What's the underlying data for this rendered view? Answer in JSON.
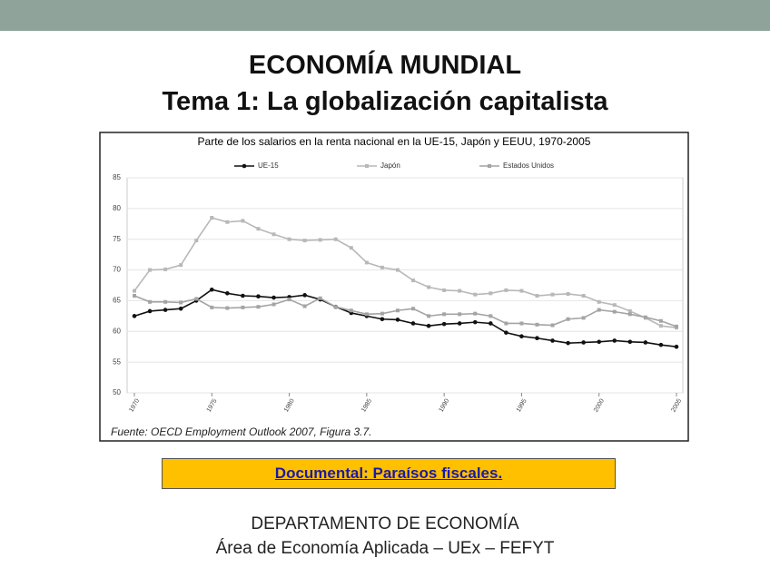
{
  "slide": {
    "title": "ECONOMÍA MUNDIAL",
    "subtitle": "Tema 1: La globalización capitalista",
    "link": "Documental: Paraísos fiscales.",
    "footer": [
      "DEPARTAMENTO DE ECONOMÍA",
      "Área de Economía Aplicada – UEx – FEFYT"
    ]
  },
  "chart_data": {
    "type": "line",
    "title": "Parte de los salarios en la renta nacional en la UE-15, Japón y EEUU, 1970-2005",
    "source": "Fuente: OECD Employment Outlook 2007, Figura 3.7.",
    "x": [
      1970,
      1971,
      1972,
      1973,
      1974,
      1975,
      1976,
      1977,
      1978,
      1979,
      1980,
      1981,
      1982,
      1983,
      1984,
      1985,
      1986,
      1987,
      1988,
      1989,
      1990,
      1991,
      1992,
      1993,
      1994,
      1995,
      1996,
      1997,
      1998,
      1999,
      2000,
      2001,
      2002,
      2003,
      2004,
      2005
    ],
    "xlim": [
      1970,
      2005
    ],
    "xticks": [
      1970,
      1975,
      1980,
      1985,
      1990,
      1995,
      2000,
      2005
    ],
    "ylim": [
      50,
      85
    ],
    "yticks": [
      50,
      55,
      60,
      65,
      70,
      75,
      80,
      85
    ],
    "series": [
      {
        "name": "UE-15",
        "color": "#111111",
        "marker": "circle",
        "values": [
          62.5,
          63.3,
          63.5,
          63.7,
          65,
          66.8,
          66.2,
          65.8,
          65.7,
          65.5,
          65.6,
          65.9,
          65.2,
          64,
          63,
          62.5,
          62,
          61.9,
          61.3,
          60.9,
          61.2,
          61.3,
          61.5,
          61.3,
          59.8,
          59.2,
          58.9,
          58.5,
          58.1,
          58.2,
          58.3,
          58.5,
          58.3,
          58.2,
          57.8,
          57.5
        ]
      },
      {
        "name": "Japón",
        "color": "#b8b8b8",
        "marker": "square",
        "values": [
          66.6,
          70,
          70.1,
          70.8,
          74.8,
          78.5,
          77.8,
          78,
          76.7,
          75.8,
          75,
          74.8,
          74.9,
          75,
          73.6,
          71.2,
          70.4,
          70,
          68.3,
          67.2,
          66.7,
          66.6,
          66,
          66.2,
          66.7,
          66.6,
          65.8,
          66,
          66.1,
          65.8,
          64.8,
          64.3,
          63.3,
          62.2,
          60.9,
          60.6
        ]
      },
      {
        "name": "Estados Unidos",
        "color": "#a4a4a4",
        "marker": "square",
        "values": [
          65.8,
          64.8,
          64.8,
          64.7,
          65.3,
          63.9,
          63.8,
          63.9,
          64,
          64.4,
          65.2,
          64.1,
          65.4,
          64,
          63.4,
          62.8,
          62.9,
          63.4,
          63.7,
          62.5,
          62.8,
          62.8,
          62.9,
          62.5,
          61.3,
          61.3,
          61.1,
          61,
          62,
          62.2,
          63.5,
          63.2,
          62.8,
          62.3,
          61.7,
          60.8
        ]
      }
    ]
  }
}
